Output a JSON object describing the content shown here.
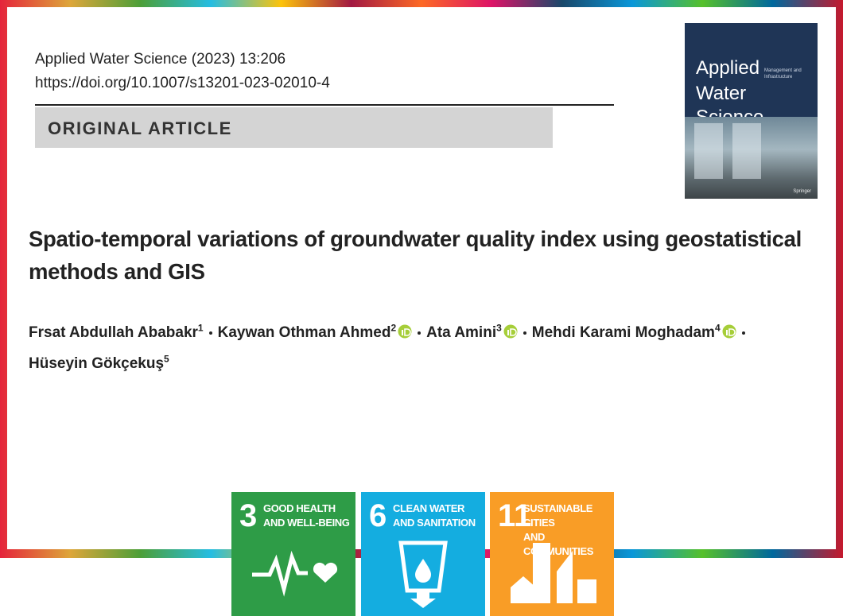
{
  "header": {
    "citation": "Applied Water Science (2023) 13:206",
    "doi": "https://doi.org/10.1007/s13201-023-02010-4",
    "section": "ORIGINAL ARTICLE"
  },
  "cover": {
    "title_lines": [
      "Applied",
      "Water Science"
    ],
    "subtitle": "Management and Infrastructure",
    "publisher": "Springer"
  },
  "article": {
    "title": "Spatio-temporal variations of groundwater quality index using geostatistical methods and GIS",
    "authors": [
      {
        "name": "Frsat Abdullah Ababakr",
        "affiliation": "1",
        "orcid": false
      },
      {
        "name": "Kaywan Othman Ahmed",
        "affiliation": "2",
        "orcid": true
      },
      {
        "name": "Ata Amini",
        "affiliation": "3",
        "orcid": true
      },
      {
        "name": "Mehdi Karami Moghadam",
        "affiliation": "4",
        "orcid": true
      },
      {
        "name": "Hüseyin Gökçekuş",
        "affiliation": "5",
        "orcid": false
      }
    ]
  },
  "sdg": [
    {
      "number": "3",
      "label_lines": [
        "GOOD HEALTH",
        "AND WELL-BEING"
      ],
      "color": "#2e9c47",
      "icon": "health"
    },
    {
      "number": "6",
      "label_lines": [
        "CLEAN WATER",
        "AND SANITATION"
      ],
      "color": "#14ade0",
      "icon": "water"
    },
    {
      "number": "11",
      "label_lines": [
        "SUSTAINABLE CITIES",
        "AND COMMUNITIES"
      ],
      "color": "#f99d26",
      "icon": "city"
    }
  ]
}
